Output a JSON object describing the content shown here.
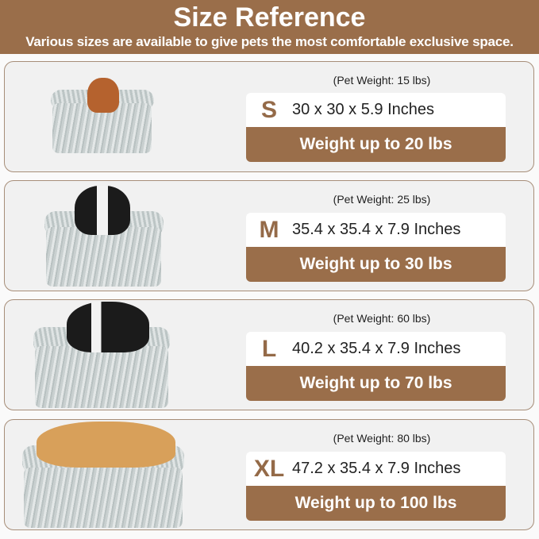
{
  "header": {
    "title": "Size Reference",
    "subtitle": "Various sizes are available to give pets the most comfortable exclusive space."
  },
  "colors": {
    "brand_brown": "#9a6e4a",
    "card_bg": "#f1f1f1"
  },
  "sizes": [
    {
      "size": "S",
      "pet_weight": "(Pet Weight: 15 lbs)",
      "dimensions": "30 x 30 x 5.9 Inches",
      "capacity": "Weight up to 20 lbs",
      "image": "bed-with-poodle"
    },
    {
      "size": "M",
      "pet_weight": "(Pet Weight: 25 lbs)",
      "dimensions": "35.4 x 35.4 x 7.9 Inches",
      "capacity": "Weight up to 30 lbs",
      "image": "bed-with-boston-terrier"
    },
    {
      "size": "L",
      "pet_weight": "(Pet Weight: 60 lbs)",
      "dimensions": "40.2 x 35.4 x 7.9 Inches",
      "capacity": "Weight up to 70 lbs",
      "image": "bed-with-border-collie"
    },
    {
      "size": "XL",
      "pet_weight": "(Pet Weight: 80 lbs)",
      "dimensions": "47.2 x 35.4 x 7.9 Inches",
      "capacity": "Weight up to 100 lbs",
      "image": "bed-with-golden-retriever"
    }
  ]
}
